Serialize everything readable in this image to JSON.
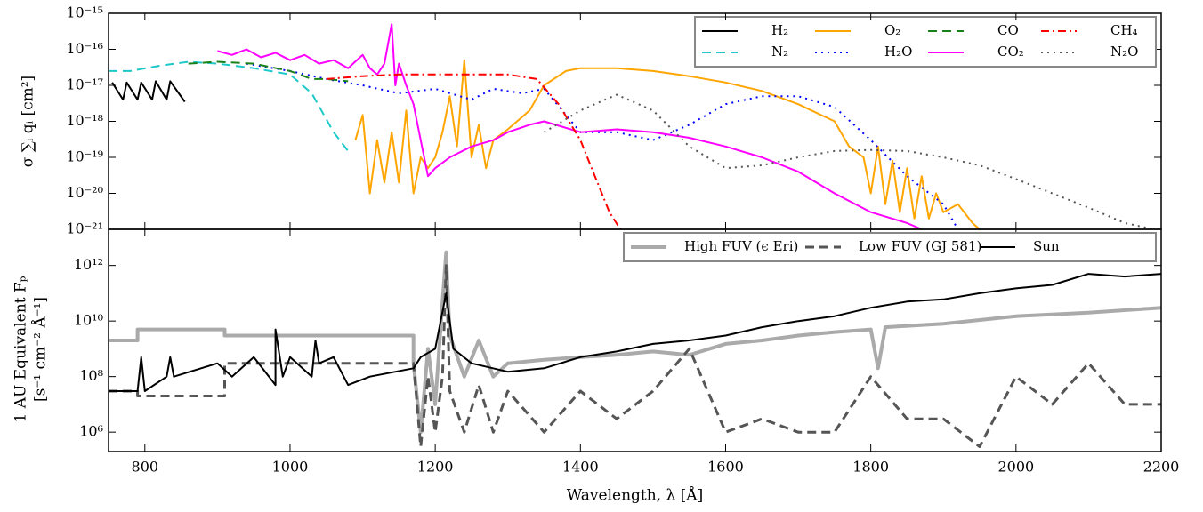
{
  "chart_data": [
    {
      "type": "line",
      "ylabel": "σ ∑ᵢ qᵢ [cm²]",
      "yscale": "log",
      "xlim": [
        750,
        2200
      ],
      "ylim": [
        1e-21,
        1e-15
      ],
      "yticks": [
        {
          "value": 1e-15,
          "label": "10⁻¹⁵"
        },
        {
          "value": 1e-16,
          "label": "10⁻¹⁶"
        },
        {
          "value": 1e-17,
          "label": "10⁻¹⁷"
        },
        {
          "value": 1e-18,
          "label": "10⁻¹⁸"
        },
        {
          "value": 1e-19,
          "label": "10⁻¹⁹"
        },
        {
          "value": 1e-20,
          "label": "10⁻²⁰"
        },
        {
          "value": 1e-21,
          "label": "10⁻²¹"
        }
      ],
      "legend": "upper right",
      "legend_columns": 4,
      "series": [
        {
          "name": "H₂",
          "color": "#000000",
          "dash": "solid",
          "width": 2,
          "x": [
            755,
            770,
            775,
            790,
            795,
            810,
            815,
            830,
            835,
            855
          ],
          "values": [
            1.2e-17,
            4e-18,
            1.2e-17,
            4e-18,
            1.2e-17,
            4e-18,
            1.3e-17,
            4e-18,
            1.3e-17,
            3.5e-18
          ]
        },
        {
          "name": "N₂",
          "color": "#1ec8c8",
          "dash": "dashed",
          "width": 2,
          "x": [
            750,
            780,
            820,
            860,
            900,
            950,
            1000,
            1030,
            1060,
            1080
          ],
          "values": [
            2.5e-17,
            2.5e-17,
            3.5e-17,
            4.5e-17,
            4e-17,
            3e-17,
            2e-17,
            6e-18,
            5e-19,
            1.5e-19
          ]
        },
        {
          "name": "O₂",
          "color": "#ffa500",
          "dash": "solid",
          "width": 2,
          "x": [
            1090,
            1100,
            1110,
            1120,
            1130,
            1140,
            1150,
            1160,
            1170,
            1180,
            1190,
            1200,
            1210,
            1220,
            1230,
            1240,
            1250,
            1260,
            1270,
            1280,
            1300,
            1330,
            1350,
            1380,
            1400,
            1450,
            1500,
            1550,
            1600,
            1650,
            1700,
            1750,
            1770,
            1790,
            1800,
            1810,
            1820,
            1830,
            1840,
            1850,
            1860,
            1870,
            1880,
            1890,
            1900,
            1920,
            1940,
            1950
          ],
          "values": [
            3e-19,
            1.5e-18,
            1e-20,
            3e-19,
            2e-20,
            5e-19,
            2e-20,
            2e-18,
            1e-20,
            1e-19,
            5e-20,
            1e-19,
            5e-19,
            5e-18,
            2e-19,
            5e-17,
            1e-19,
            8e-19,
            5e-20,
            3e-19,
            6e-19,
            2e-18,
            1e-17,
            2.5e-17,
            3e-17,
            3e-17,
            2.5e-17,
            1.8e-17,
            1.2e-17,
            7e-18,
            3e-18,
            1e-18,
            2e-19,
            1e-19,
            1e-20,
            2e-19,
            5e-21,
            8e-20,
            3e-21,
            5e-20,
            2e-21,
            3e-20,
            2e-21,
            1e-20,
            3e-21,
            5e-21,
            1.5e-21,
            1e-21
          ]
        },
        {
          "name": "H₂O",
          "color": "#0000ff",
          "dash": "dotted",
          "width": 2,
          "x": [
            940,
            1000,
            1050,
            1100,
            1150,
            1200,
            1250,
            1280,
            1320,
            1350,
            1400,
            1450,
            1500,
            1550,
            1600,
            1650,
            1700,
            1750,
            1800,
            1850,
            1900,
            1920
          ],
          "values": [
            4e-17,
            2.5e-17,
            1.5e-17,
            1e-17,
            6e-18,
            8e-18,
            4e-18,
            8e-18,
            6e-18,
            8e-18,
            5e-19,
            5e-19,
            3e-19,
            8e-19,
            3e-18,
            5e-18,
            5e-18,
            2.5e-18,
            3e-19,
            3e-20,
            5e-21,
            1e-21
          ]
        },
        {
          "name": "CO",
          "color": "#1a801a",
          "dash": "dashed",
          "width": 2,
          "x": [
            860,
            900,
            950,
            1000,
            1030,
            1050,
            1080
          ],
          "values": [
            4e-17,
            4.5e-17,
            4e-17,
            2.5e-17,
            1.5e-17,
            1.5e-17,
            1.3e-17
          ]
        },
        {
          "name": "CO₂",
          "color": "#ff00ff",
          "dash": "solid",
          "width": 2,
          "x": [
            900,
            920,
            940,
            960,
            980,
            1000,
            1020,
            1040,
            1060,
            1080,
            1100,
            1110,
            1120,
            1130,
            1140,
            1145,
            1150,
            1160,
            1170,
            1180,
            1190,
            1200,
            1220,
            1250,
            1280,
            1300,
            1330,
            1350,
            1400,
            1450,
            1500,
            1550,
            1600,
            1650,
            1700,
            1750,
            1800,
            1850,
            1870
          ],
          "values": [
            9e-17,
            7e-17,
            1e-16,
            6e-17,
            8e-17,
            5e-17,
            7e-17,
            4e-17,
            5e-17,
            3e-17,
            7e-17,
            3e-17,
            2e-17,
            4e-17,
            5e-16,
            1e-17,
            4e-17,
            1e-17,
            3e-18,
            3e-19,
            3e-20,
            5e-20,
            1e-19,
            2e-19,
            3e-19,
            5e-19,
            8e-19,
            1e-18,
            5e-19,
            6e-19,
            5e-19,
            3.5e-19,
            2e-19,
            1e-19,
            4e-20,
            1e-20,
            3e-21,
            1.5e-21,
            1e-21
          ]
        },
        {
          "name": "CH₄",
          "color": "#ff0000",
          "dash": "dashdot",
          "width": 2,
          "x": [
            1050,
            1100,
            1150,
            1200,
            1250,
            1300,
            1340,
            1370,
            1400,
            1420,
            1440,
            1455
          ],
          "values": [
            1.5e-17,
            1.8e-17,
            2e-17,
            2e-17,
            2e-17,
            2e-17,
            1.5e-17,
            3e-18,
            3e-19,
            3e-20,
            3e-21,
            1e-21
          ]
        },
        {
          "name": "N₂O",
          "color": "#555555",
          "dash": "dotted",
          "width": 2,
          "x": [
            1350,
            1400,
            1450,
            1500,
            1550,
            1600,
            1650,
            1700,
            1750,
            1800,
            1850,
            1900,
            1950,
            2000,
            2050,
            2100,
            2150,
            2190
          ],
          "values": [
            5e-19,
            2e-18,
            5.5e-18,
            2e-18,
            2e-19,
            5e-20,
            6e-20,
            1e-19,
            1.5e-19,
            1.6e-19,
            1.5e-19,
            1e-19,
            6e-20,
            2.5e-20,
            1e-20,
            4e-21,
            1.5e-21,
            1e-21
          ]
        }
      ]
    },
    {
      "type": "line",
      "ylabel": [
        "1 AU Equivalent Fₚ",
        "[s⁻¹ cm⁻² Å⁻¹]"
      ],
      "xlabel": "Wavelength, λ [Å]",
      "yscale": "log",
      "xlim": [
        750,
        2200
      ],
      "ylim": [
        200000,
        20000000000000
      ],
      "xticks": [
        800,
        1000,
        1200,
        1400,
        1600,
        1800,
        2000,
        2200
      ],
      "yticks": [
        {
          "value": 1000000,
          "label": "10⁶"
        },
        {
          "value": 100000000,
          "label": "10⁸"
        },
        {
          "value": 10000000000,
          "label": "10¹⁰"
        },
        {
          "value": 1000000000000,
          "label": "10¹²"
        }
      ],
      "legend": "upper right",
      "legend_columns": 3,
      "series": [
        {
          "name": "High FUV (ϵ Eri)",
          "color": "#aaaaaa",
          "dash": "solid",
          "width": 4,
          "x": [
            750,
            790,
            790,
            910,
            910,
            1170,
            1170,
            1180,
            1190,
            1200,
            1210,
            1215,
            1220,
            1240,
            1260,
            1280,
            1300,
            1350,
            1400,
            1450,
            1500,
            1550,
            1600,
            1650,
            1700,
            1750,
            1800,
            1810,
            1820,
            1900,
            2000,
            2100,
            2200
          ],
          "values": [
            2000000000.0,
            2000000000.0,
            5000000000.0,
            5000000000.0,
            3000000000.0,
            3000000000.0,
            300000000.0,
            1000000.0,
            1000000000.0,
            10000000.0,
            50000000000.0,
            3000000000000.0,
            3000000000.0,
            100000000.0,
            2000000000.0,
            100000000.0,
            300000000.0,
            400000000.0,
            500000000.0,
            600000000.0,
            800000000.0,
            600000000.0,
            1500000000.0,
            2000000000.0,
            3000000000.0,
            4000000000.0,
            5000000000.0,
            200000000.0,
            6000000000.0,
            8000000000.0,
            15000000000.0,
            20000000000.0,
            30000000000.0
          ]
        },
        {
          "name": "Low FUV (GJ 581)",
          "color": "#555555",
          "dash": "dashed",
          "width": 3,
          "x": [
            750,
            790,
            790,
            910,
            910,
            1170,
            1180,
            1190,
            1200,
            1210,
            1215,
            1220,
            1240,
            1260,
            1280,
            1300,
            1350,
            1400,
            1450,
            1500,
            1550,
            1600,
            1650,
            1700,
            1750,
            1800,
            1850,
            1900,
            1950,
            2000,
            2050,
            2100,
            2150,
            2200
          ],
          "values": [
            30000000.0,
            30000000.0,
            20000000.0,
            20000000.0,
            300000000.0,
            300000000.0,
            300000.0,
            100000000.0,
            1000000.0,
            100000000.0,
            1000000000000.0,
            30000000.0,
            1000000.0,
            50000000.0,
            1000000.0,
            30000000.0,
            1000000.0,
            30000000.0,
            3000000.0,
            30000000.0,
            1000000000.0,
            1000000.0,
            3000000.0,
            1000000.0,
            1000000.0,
            100000000.0,
            3000000.0,
            3000000.0,
            300000.0,
            100000000.0,
            10000000.0,
            300000000.0,
            10000000.0,
            10000000.0
          ]
        },
        {
          "name": "Sun",
          "color": "#000000",
          "dash": "solid",
          "width": 2,
          "x": [
            750,
            790,
            795,
            800,
            830,
            835,
            840,
            900,
            920,
            950,
            980,
            980,
            990,
            1000,
            1030,
            1035,
            1040,
            1060,
            1080,
            1110,
            1170,
            1180,
            1200,
            1215,
            1225,
            1250,
            1300,
            1350,
            1400,
            1450,
            1500,
            1550,
            1600,
            1650,
            1700,
            1750,
            1800,
            1850,
            1900,
            1950,
            2000,
            2050,
            2100,
            2150,
            2200
          ],
          "values": [
            30000000.0,
            30000000.0,
            500000000.0,
            30000000.0,
            100000000.0,
            500000000.0,
            100000000.0,
            300000000.0,
            100000000.0,
            500000000.0,
            50000000.0,
            5000000000.0,
            100000000.0,
            500000000.0,
            100000000.0,
            2000000000.0,
            300000000.0,
            500000000.0,
            50000000.0,
            100000000.0,
            200000000.0,
            500000000.0,
            1000000000.0,
            100000000000.0,
            1000000000.0,
            300000000.0,
            150000000.0,
            200000000.0,
            500000000.0,
            800000000.0,
            1500000000.0,
            2000000000.0,
            3000000000.0,
            6000000000.0,
            10000000000.0,
            15000000000.0,
            30000000000.0,
            50000000000.0,
            60000000000.0,
            100000000000.0,
            150000000000.0,
            200000000000.0,
            500000000000.0,
            400000000000.0,
            500000000000.0
          ]
        }
      ]
    }
  ]
}
